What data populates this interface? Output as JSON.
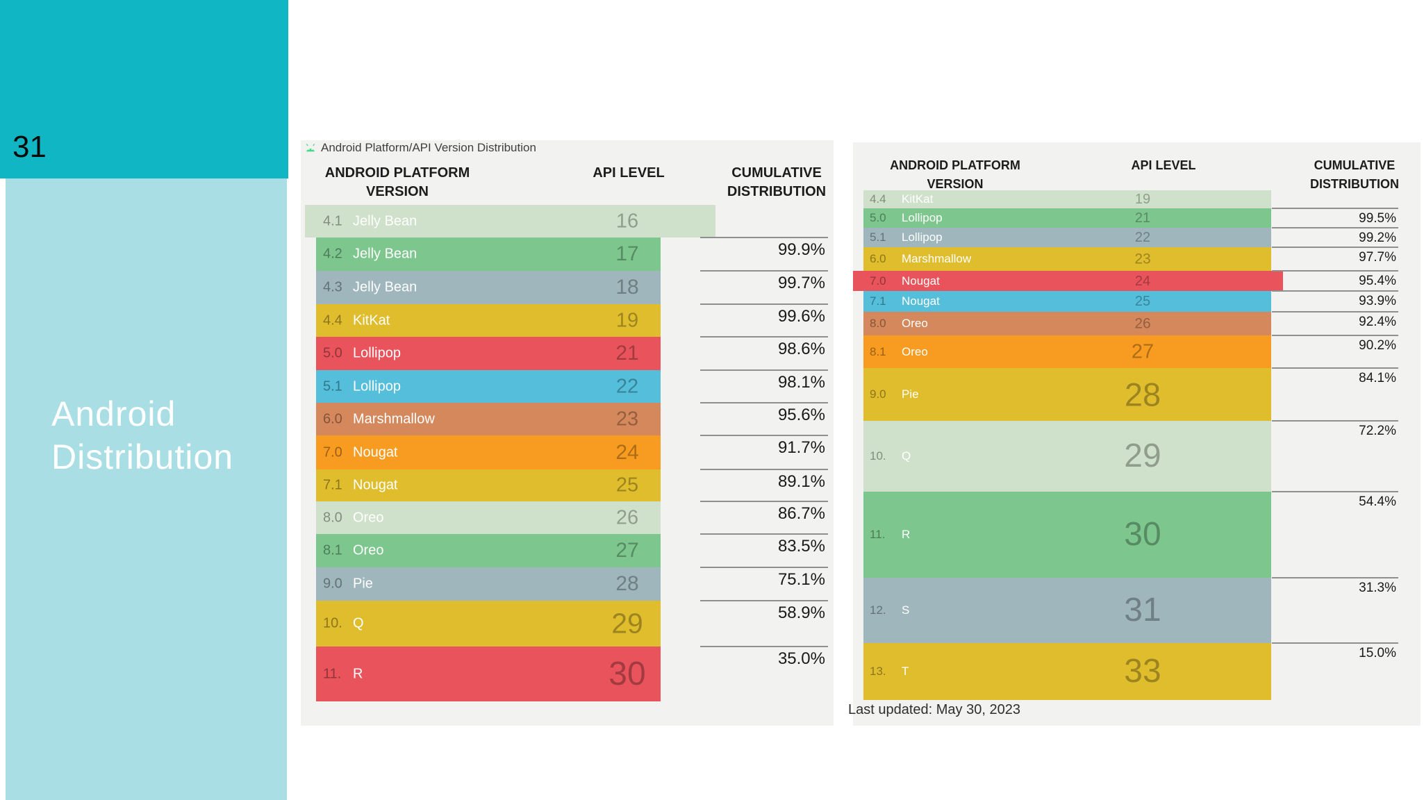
{
  "slide": {
    "number": "31",
    "title_lines": [
      "Android",
      "Distribution"
    ]
  },
  "palette": {
    "sidebar_dark_teal": "#11b6c4",
    "sidebar_light_teal": "#a9dfe4",
    "panel_bg": "#f2f2f1",
    "paleGreen": "#cfe1ca",
    "green": "#7dc78e",
    "blueGray": "#9fb6bd",
    "gold": "#e0bd2d",
    "red": "#e9545c",
    "cyan": "#54bedb",
    "salmon": "#d4885c",
    "orange": "#f89b21"
  },
  "left_table": {
    "caption": "Android Platform/API Version Distribution",
    "caption_icon": "android-robot-icon",
    "headers": {
      "col1": "ANDROID PLATFORM\nVERSION",
      "col2": "API LEVEL",
      "col3": "CUMULATIVE\nDISTRIBUTION"
    },
    "rows": [
      {
        "version": "4.1",
        "name": "Jelly Bean",
        "api": "16",
        "cumulative": null,
        "color": "paleGreen",
        "h": 47,
        "highlight": true
      },
      {
        "version": "4.2",
        "name": "Jelly Bean",
        "api": "17",
        "cumulative": "99.9%",
        "color": "green",
        "h": 48
      },
      {
        "version": "4.3",
        "name": "Jelly Bean",
        "api": "18",
        "cumulative": "99.7%",
        "color": "blueGray",
        "h": 48
      },
      {
        "version": "4.4",
        "name": "KitKat",
        "api": "19",
        "cumulative": "99.6%",
        "color": "gold",
        "h": 47
      },
      {
        "version": "5.0",
        "name": "Lollipop",
        "api": "21",
        "cumulative": "98.6%",
        "color": "red",
        "h": 48
      },
      {
        "version": "5.1",
        "name": "Lollipop",
        "api": "22",
        "cumulative": "98.1%",
        "color": "cyan",
        "h": 47
      },
      {
        "version": "6.0",
        "name": "Marshmallow",
        "api": "23",
        "cumulative": "95.6%",
        "color": "salmon",
        "h": 47
      },
      {
        "version": "7.0",
        "name": "Nougat",
        "api": "24",
        "cumulative": "91.7%",
        "color": "orange",
        "h": 49
      },
      {
        "version": "7.1",
        "name": "Nougat",
        "api": "25",
        "cumulative": "89.1%",
        "color": "gold",
        "h": 46
      },
      {
        "version": "8.0",
        "name": "Oreo",
        "api": "26",
        "cumulative": "86.7%",
        "color": "paleGreen",
        "h": 47
      },
      {
        "version": "8.1",
        "name": "Oreo",
        "api": "27",
        "cumulative": "83.5%",
        "color": "green",
        "h": 48
      },
      {
        "version": "9.0",
        "name": "Pie",
        "api": "28",
        "cumulative": "75.1%",
        "color": "blueGray",
        "h": 48
      },
      {
        "version": "10.",
        "name": "Q",
        "api": "29",
        "cumulative": "58.9%",
        "color": "gold",
        "h": 66
      },
      {
        "version": "11.",
        "name": "R",
        "api": "30",
        "cumulative": "35.0%",
        "color": "red",
        "h": 79
      }
    ]
  },
  "right_table": {
    "headers": {
      "col1": "ANDROID PLATFORM\nVERSION",
      "col2": "API LEVEL",
      "col3": "CUMULATIVE\nDISTRIBUTION"
    },
    "last_updated": "Last updated: May 30, 2023",
    "rows": [
      {
        "version": "4.4",
        "name": "KitKat",
        "api": "19",
        "cumulative": null,
        "color": "paleGreen",
        "h": 26
      },
      {
        "version": "5.0",
        "name": "Lollipop",
        "api": "21",
        "cumulative": "99.5%",
        "color": "green",
        "h": 28
      },
      {
        "version": "5.1",
        "name": "Lollipop",
        "api": "22",
        "cumulative": "99.2%",
        "color": "blueGray",
        "h": 28
      },
      {
        "version": "6.0",
        "name": "Marshmallow",
        "api": "23",
        "cumulative": "97.7%",
        "color": "gold",
        "h": 34
      },
      {
        "version": "7.0",
        "name": "Nougat",
        "api": "24",
        "cumulative": "95.4%",
        "color": "red",
        "h": 29,
        "highlight": true
      },
      {
        "version": "7.1",
        "name": "Nougat",
        "api": "25",
        "cumulative": "93.9%",
        "color": "cyan",
        "h": 30
      },
      {
        "version": "8.0",
        "name": "Oreo",
        "api": "26",
        "cumulative": "92.4%",
        "color": "salmon",
        "h": 34
      },
      {
        "version": "8.1",
        "name": "Oreo",
        "api": "27",
        "cumulative": "90.2%",
        "color": "orange",
        "h": 47
      },
      {
        "version": "9.0",
        "name": "Pie",
        "api": "28",
        "cumulative": "84.1%",
        "color": "gold",
        "h": 76
      },
      {
        "version": "10.",
        "name": "Q",
        "api": "29",
        "cumulative": "72.2%",
        "color": "paleGreen",
        "h": 102
      },
      {
        "version": "11.",
        "name": "R",
        "api": "30",
        "cumulative": "54.4%",
        "color": "green",
        "h": 124
      },
      {
        "version": "12.",
        "name": "S",
        "api": "31",
        "cumulative": "31.3%",
        "color": "blueGray",
        "h": 94
      },
      {
        "version": "13.",
        "name": "T",
        "api": "33",
        "cumulative": "15.0%",
        "color": "gold",
        "h": 82
      }
    ]
  }
}
